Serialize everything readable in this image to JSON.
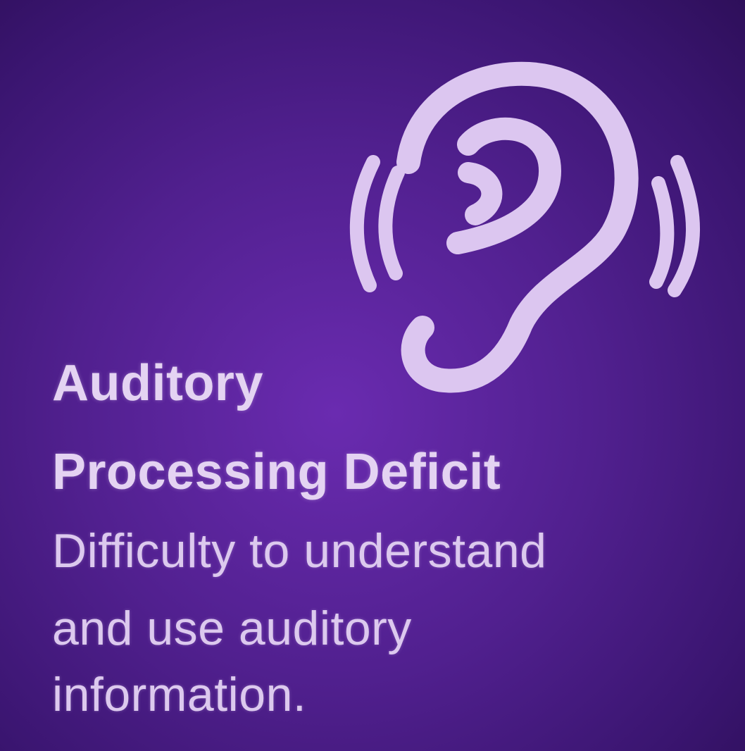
{
  "icon": {
    "name": "ear-icon",
    "color": "#dcc6f0"
  },
  "heading": {
    "line1": "Auditory",
    "line2": "Processing Deficit"
  },
  "description": {
    "line1": "Difficulty to understand",
    "line2": "and use auditory",
    "line3": "information."
  },
  "colors": {
    "background": "#51208f",
    "text": "#e4d3f2"
  }
}
